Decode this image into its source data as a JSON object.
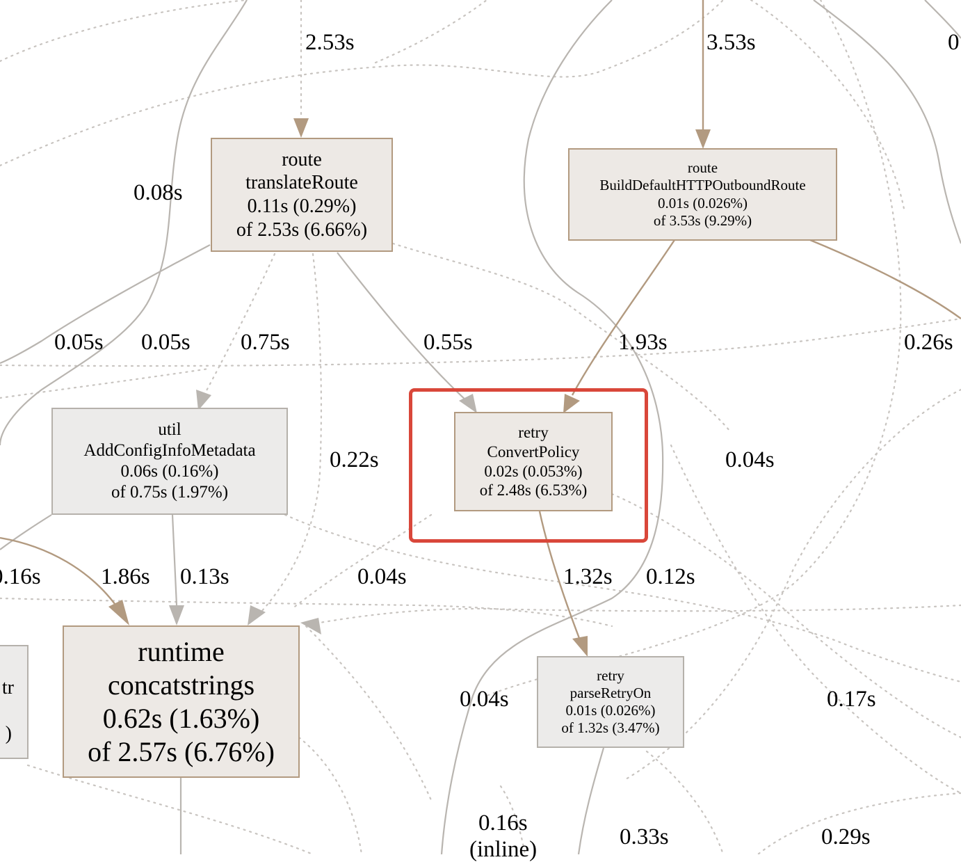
{
  "colors": {
    "node_fill": "#ede9e5",
    "node_fill_light": "#ecebea",
    "node_border": "#b29a80",
    "node_border_light": "#b5b1ab",
    "edge_brown": "#b29a80",
    "edge_gray": "#b9b5b0",
    "edge_dotted": "#c8c4c0",
    "highlight": "#d9473a"
  },
  "nodes": {
    "translate_route": {
      "pkg": "route",
      "name": "translateRoute",
      "flat": "0.11s (0.29%)",
      "cum": "of 2.53s (6.66%)"
    },
    "build_default": {
      "pkg": "route",
      "name": "BuildDefaultHTTPOutboundRoute",
      "flat": "0.01s (0.026%)",
      "cum": "of 3.53s (9.29%)"
    },
    "add_config": {
      "pkg": "util",
      "name": "AddConfigInfoMetadata",
      "flat": "0.06s (0.16%)",
      "cum": "of 0.75s (1.97%)"
    },
    "convert_policy": {
      "pkg": "retry",
      "name": "ConvertPolicy",
      "flat": "0.02s (0.053%)",
      "cum": "of 2.48s (6.53%)"
    },
    "concatstrings": {
      "pkg": "runtime",
      "name": "concatstrings",
      "flat": "0.62s (1.63%)",
      "cum": "of 2.57s (6.76%)"
    },
    "parse_retry_on": {
      "pkg": "retry",
      "name": "parseRetryOn",
      "flat": "0.01s (0.026%)",
      "cum": "of 1.32s (3.47%)"
    },
    "partial_left": {
      "line1": "tr",
      "line2": ")"
    }
  },
  "edge_labels": {
    "e_253": "2.53s",
    "e_353": "3.53s",
    "e_top_right": "0",
    "e_008": "0.08s",
    "e_005a": "0.05s",
    "e_005b": "0.05s",
    "e_075": "0.75s",
    "e_055": "0.55s",
    "e_193": "1.93s",
    "e_026": "0.26s",
    "e_022": "0.22s",
    "e_004_right": "0.04s",
    "e_016_left": "0.16s",
    "e_186": "1.86s",
    "e_013": "0.13s",
    "e_004_mid": "0.04s",
    "e_132": "1.32s",
    "e_012": "0.12s",
    "e_004_low": "0.04s",
    "e_017": "0.17s",
    "e_016_inline": "0.16s",
    "e_inline": "(inline)",
    "e_033": "0.33s",
    "e_029": "0.29s"
  }
}
